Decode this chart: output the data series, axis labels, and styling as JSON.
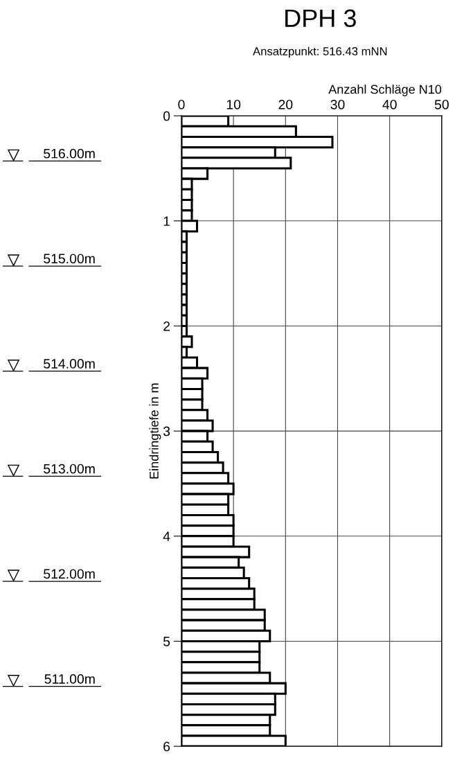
{
  "chart_data": {
    "type": "bar",
    "orientation": "horizontal",
    "title": "DPH 3",
    "subtitle": "Ansatzpunkt: 516.43 mNN",
    "xlabel": "Anzahl Schläge N10",
    "ylabel": "Eindringtiefe in m",
    "x": [
      0.05,
      0.15,
      0.25,
      0.35,
      0.45,
      0.55,
      0.65,
      0.75,
      0.85,
      0.95,
      1.05,
      1.15,
      1.25,
      1.35,
      1.45,
      1.55,
      1.65,
      1.75,
      1.85,
      1.95,
      2.05,
      2.15,
      2.25,
      2.35,
      2.45,
      2.55,
      2.65,
      2.75,
      2.85,
      2.95,
      3.05,
      3.15,
      3.25,
      3.35,
      3.45,
      3.55,
      3.65,
      3.75,
      3.85,
      3.95,
      4.05,
      4.15,
      4.25,
      4.35,
      4.45,
      4.55,
      4.65,
      4.75,
      4.85,
      4.95,
      5.05,
      5.15,
      5.25,
      5.35,
      5.45,
      5.55,
      5.65,
      5.75,
      5.85,
      5.95
    ],
    "values": [
      9,
      22,
      29,
      18,
      21,
      5,
      2,
      2,
      2,
      2,
      3,
      1,
      1,
      1,
      1,
      1,
      1,
      1,
      1,
      1,
      1,
      2,
      1,
      3,
      5,
      4,
      4,
      4,
      5,
      6,
      5,
      6,
      7,
      8,
      9,
      10,
      9,
      9,
      10,
      10,
      10,
      13,
      11,
      12,
      13,
      14,
      14,
      16,
      16,
      17,
      15,
      15,
      15,
      17,
      20,
      18,
      18,
      17,
      17,
      20
    ],
    "color": "#ffffff",
    "xlim": [
      0,
      50
    ],
    "xticks": [
      0,
      10,
      20,
      30,
      40,
      50
    ],
    "ylim": [
      6,
      0
    ],
    "yticks": [
      0,
      1,
      2,
      3,
      4,
      5,
      6
    ],
    "y2lim": [
      510.43,
      516.43
    ],
    "y2ticks": [
      {
        "value": 516,
        "label": "516.00m"
      },
      {
        "value": 515,
        "label": "515.00m"
      },
      {
        "value": 514,
        "label": "514.00m"
      },
      {
        "value": 513,
        "label": "513.00m"
      },
      {
        "value": 512,
        "label": "512.00m"
      },
      {
        "value": 511,
        "label": "511.00m"
      }
    ],
    "grid": true
  }
}
